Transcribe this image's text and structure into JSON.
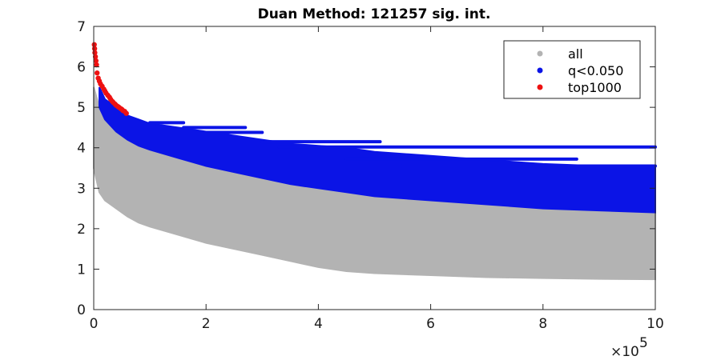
{
  "chart_data": {
    "type": "scatter",
    "title": "Duan Method: 121257 sig. int.",
    "xlabel": "",
    "ylabel": "",
    "xlim": [
      0,
      1000000
    ],
    "ylim": [
      0,
      7
    ],
    "x_ticks": [
      0,
      200000,
      400000,
      600000,
      800000,
      1000000
    ],
    "x_tick_labels": [
      "0",
      "2",
      "4",
      "6",
      "8",
      "10"
    ],
    "x_exponent_label": "×10",
    "x_exponent_power": "5",
    "y_ticks": [
      0,
      1,
      2,
      3,
      4,
      5,
      6,
      7
    ],
    "y_tick_labels": [
      "0",
      "1",
      "2",
      "3",
      "4",
      "5",
      "6",
      "7"
    ],
    "grid": false,
    "legend_position": "top-right",
    "series": [
      {
        "name": "all",
        "color": "#b3b3b3",
        "kind": "band",
        "x": [
          0,
          10000,
          20000,
          40000,
          60000,
          80000,
          100000,
          150000,
          200000,
          250000,
          300000,
          350000,
          400000,
          450000,
          500000,
          600000,
          700000,
          800000,
          900000,
          1000000
        ],
        "lower": [
          3.5,
          2.9,
          2.7,
          2.5,
          2.3,
          2.15,
          2.05,
          1.85,
          1.65,
          1.5,
          1.35,
          1.2,
          1.05,
          0.95,
          0.9,
          0.85,
          0.8,
          0.78,
          0.76,
          0.75
        ],
        "upper": [
          5.5,
          5.0,
          4.7,
          4.4,
          4.2,
          4.05,
          3.95,
          3.75,
          3.55,
          3.4,
          3.25,
          3.1,
          3.0,
          2.9,
          2.8,
          2.7,
          2.6,
          2.5,
          2.45,
          2.4
        ]
      },
      {
        "name": "q<0.050",
        "color": "#0b14e6",
        "kind": "band",
        "x": [
          10000,
          20000,
          40000,
          60000,
          80000,
          100000,
          150000,
          200000,
          250000,
          300000,
          350000,
          400000,
          450000,
          500000,
          600000,
          700000,
          800000,
          900000,
          1000000
        ],
        "lower": [
          5.0,
          4.7,
          4.4,
          4.2,
          4.05,
          3.95,
          3.75,
          3.55,
          3.4,
          3.25,
          3.1,
          3.0,
          2.9,
          2.8,
          2.7,
          2.6,
          2.5,
          2.45,
          2.4
        ],
        "upper": [
          5.5,
          5.2,
          5.0,
          4.8,
          4.7,
          4.6,
          4.5,
          4.4,
          4.3,
          4.2,
          4.1,
          4.05,
          4.0,
          3.9,
          3.8,
          3.7,
          3.6,
          3.55,
          3.5
        ],
        "streaks": [
          {
            "x": [
              100000,
              160000
            ],
            "y": 4.62
          },
          {
            "x": [
              160000,
              270000
            ],
            "y": 4.5
          },
          {
            "x": [
              200000,
              300000
            ],
            "y": 4.38
          },
          {
            "x": [
              300000,
              510000
            ],
            "y": 4.15
          },
          {
            "x": [
              330000,
              1000000
            ],
            "y": 4.02
          },
          {
            "x": [
              450000,
              860000
            ],
            "y": 3.72
          },
          {
            "x": [
              550000,
              1000000
            ],
            "y": 3.55
          }
        ]
      },
      {
        "name": "top1000",
        "color": "#ee1111",
        "kind": "points",
        "x": [
          1000,
          1500,
          2000,
          3000,
          4000,
          5000,
          6000,
          8000,
          10000,
          12000,
          15000,
          18000,
          20000,
          22000,
          25000,
          28000,
          30000,
          33000,
          35000,
          38000,
          40000,
          43000,
          45000,
          48000,
          50000,
          52000,
          55000,
          58000
        ],
        "y": [
          6.55,
          6.45,
          6.35,
          6.25,
          6.15,
          6.05,
          5.85,
          5.72,
          5.65,
          5.58,
          5.52,
          5.45,
          5.4,
          5.35,
          5.3,
          5.25,
          5.2,
          5.15,
          5.12,
          5.08,
          5.05,
          5.02,
          5.0,
          4.97,
          4.95,
          4.92,
          4.9,
          4.85
        ]
      }
    ]
  }
}
